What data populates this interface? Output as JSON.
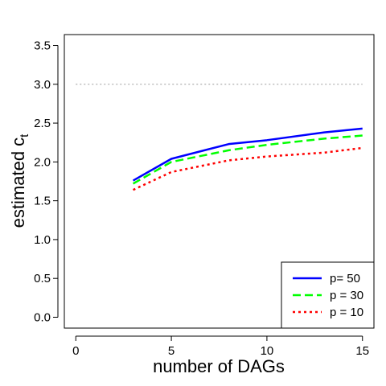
{
  "chart_data": {
    "type": "line",
    "xlabel": "number of DAGs",
    "ylabel_main": "estimated c",
    "ylabel_sub": "t",
    "xlim": [
      -0.6,
      15.6
    ],
    "ylim": [
      -0.14,
      3.64
    ],
    "xticks": [
      0,
      5,
      10,
      15
    ],
    "xtick_labels": [
      "0",
      "5",
      "10",
      "15"
    ],
    "yticks": [
      0.0,
      0.5,
      1.0,
      1.5,
      2.0,
      2.5,
      3.0,
      3.5
    ],
    "ytick_labels": [
      "0.0",
      "0.5",
      "1.0",
      "1.5",
      "2.0",
      "2.5",
      "3.0",
      "3.5"
    ],
    "reference_line": {
      "y": 3.0,
      "x_range": [
        0,
        15
      ],
      "color": "#bbbbbb",
      "style": "dotted"
    },
    "legend_position": "bottom-right",
    "series": [
      {
        "name": "p= 50",
        "color": "#0000ff",
        "style": "solid",
        "x": [
          3,
          5,
          8,
          10,
          13,
          15
        ],
        "y": [
          1.76,
          2.04,
          2.23,
          2.28,
          2.38,
          2.43
        ]
      },
      {
        "name": "p = 30",
        "color": "#00ff00",
        "style": "dashed",
        "x": [
          3,
          5,
          8,
          10,
          13,
          15
        ],
        "y": [
          1.72,
          2.0,
          2.15,
          2.22,
          2.3,
          2.34
        ]
      },
      {
        "name": "p = 10",
        "color": "#ff0000",
        "style": "dotted",
        "x": [
          3,
          5,
          8,
          10,
          13,
          15
        ],
        "y": [
          1.64,
          1.87,
          2.02,
          2.07,
          2.12,
          2.18
        ]
      }
    ]
  }
}
